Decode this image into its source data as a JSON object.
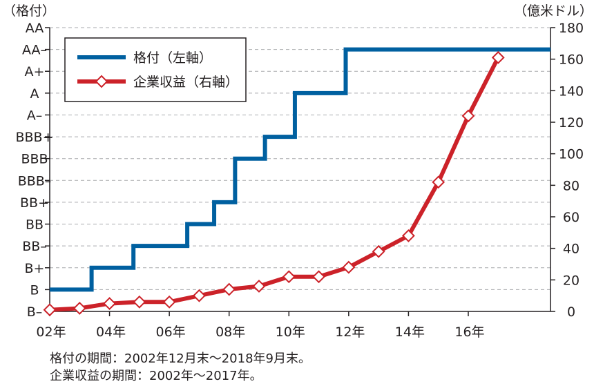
{
  "chart_data": {
    "type": "line",
    "left_axis_unit": "（格付）",
    "right_axis_unit": "（億米ドル）",
    "rating_scale": [
      "B–",
      "B",
      "B+",
      "BB–",
      "BB",
      "BB+",
      "BBB–",
      "BBB",
      "BBB+",
      "A–",
      "A",
      "A+",
      "AA–",
      "AA"
    ],
    "x_ticks": [
      {
        "year": 2002,
        "label": "02年"
      },
      {
        "year": 2004,
        "label": "04年"
      },
      {
        "year": 2006,
        "label": "06年"
      },
      {
        "year": 2008,
        "label": "08年"
      },
      {
        "year": 2010,
        "label": "10年"
      },
      {
        "year": 2012,
        "label": "12年"
      },
      {
        "year": 2014,
        "label": "14年"
      },
      {
        "year": 2016,
        "label": "16年"
      }
    ],
    "xlim": [
      2002,
      2018.75
    ],
    "ylim_right": [
      0,
      180
    ],
    "y_ticks_right": [
      0,
      20,
      40,
      60,
      80,
      100,
      120,
      140,
      160,
      180
    ],
    "grid": true,
    "legend_position": "top-left",
    "series": [
      {
        "name": "格付（左軸）",
        "axis": "left",
        "style": "step",
        "color": "#0060a0",
        "points": [
          {
            "x": 2002.0,
            "y": "B"
          },
          {
            "x": 2003.4,
            "y": "B+"
          },
          {
            "x": 2004.8,
            "y": "BB–"
          },
          {
            "x": 2006.6,
            "y": "BB"
          },
          {
            "x": 2007.5,
            "y": "BB+"
          },
          {
            "x": 2008.2,
            "y": "BBB"
          },
          {
            "x": 2009.2,
            "y": "BBB+"
          },
          {
            "x": 2010.2,
            "y": "A"
          },
          {
            "x": 2011.9,
            "y": "AA–"
          },
          {
            "x": 2018.75,
            "y": "AA–"
          }
        ]
      },
      {
        "name": "企業収益（右軸）",
        "axis": "right",
        "style": "line",
        "color": "#cc2229",
        "points": [
          {
            "x": 2002.0,
            "y": 1
          },
          {
            "x": 2003.0,
            "y": 2
          },
          {
            "x": 2004.0,
            "y": 5
          },
          {
            "x": 2005.0,
            "y": 6
          },
          {
            "x": 2006.0,
            "y": 6
          },
          {
            "x": 2007.0,
            "y": 10
          },
          {
            "x": 2008.0,
            "y": 14
          },
          {
            "x": 2009.0,
            "y": 16
          },
          {
            "x": 2010.0,
            "y": 22
          },
          {
            "x": 2011.0,
            "y": 22
          },
          {
            "x": 2012.0,
            "y": 28
          },
          {
            "x": 2013.0,
            "y": 38
          },
          {
            "x": 2014.0,
            "y": 48
          },
          {
            "x": 2015.0,
            "y": 82
          },
          {
            "x": 2016.0,
            "y": 124
          },
          {
            "x": 2017.0,
            "y": 161
          }
        ]
      }
    ]
  },
  "notes": [
    "格付の期間：2002年12月末～2018年9月末。",
    "企業収益の期間：2002年～2017年。"
  ]
}
